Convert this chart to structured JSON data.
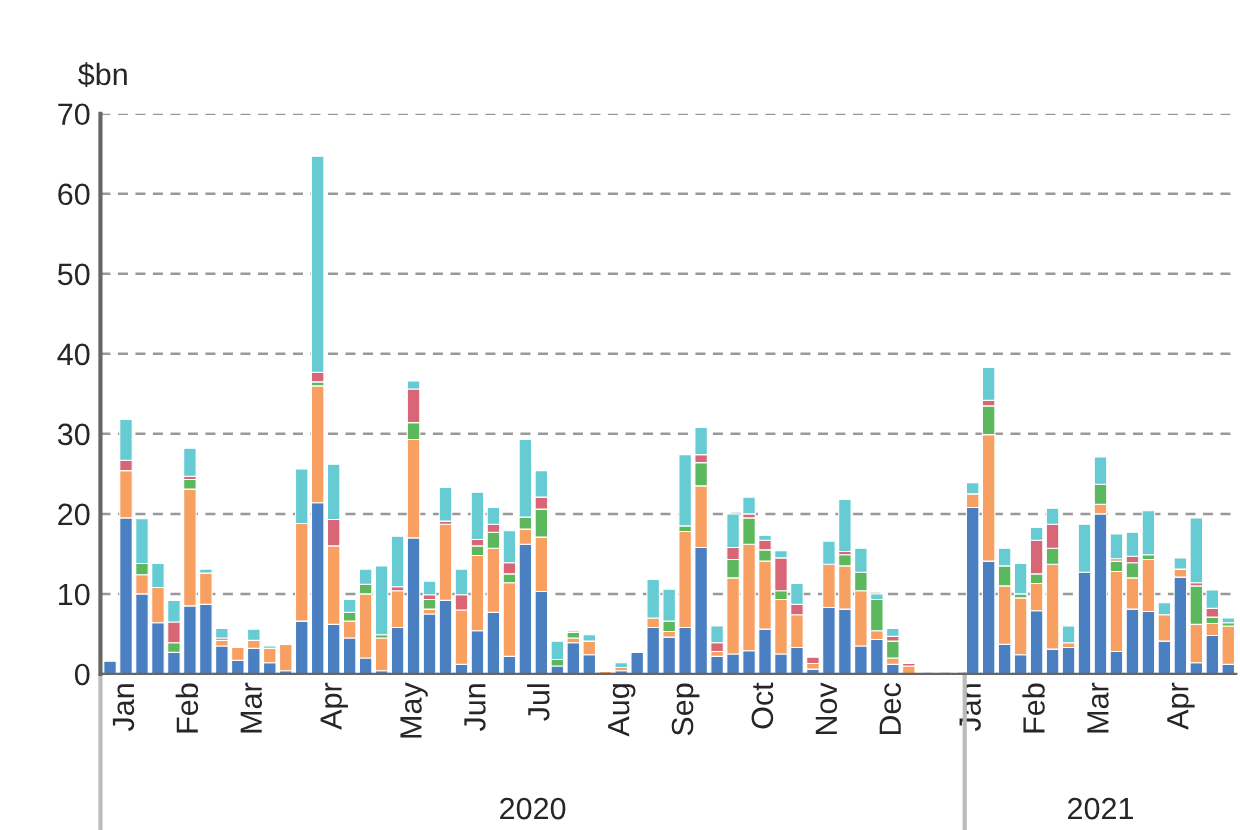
{
  "chart_data": {
    "type": "bar",
    "stacked": true,
    "ylabel": "$bn",
    "ylim": [
      0,
      70
    ],
    "yticks": [
      0,
      10,
      20,
      30,
      40,
      50,
      60,
      70
    ],
    "grid": "y",
    "legend": false,
    "categories": [
      null,
      "Jan",
      null,
      null,
      null,
      "Feb",
      null,
      null,
      null,
      "Mar",
      null,
      null,
      null,
      null,
      "Apr",
      null,
      null,
      null,
      null,
      "May",
      null,
      null,
      null,
      "Jun",
      null,
      null,
      null,
      "Jul",
      null,
      null,
      null,
      null,
      "Aug",
      null,
      null,
      null,
      "Sep",
      null,
      null,
      null,
      null,
      "Oct",
      null,
      null,
      null,
      "Nov",
      null,
      null,
      null,
      "Dec",
      null,
      null,
      null,
      null,
      "Jan",
      null,
      null,
      null,
      "Feb",
      null,
      null,
      null,
      "Mar",
      null,
      null,
      null,
      null,
      "Apr",
      null,
      null,
      null
    ],
    "series": [
      {
        "color": "#4a7fc1",
        "values": [
          1.6,
          19.5,
          10,
          6.4,
          2.7,
          8.5,
          8.7,
          3.5,
          1.7,
          3.2,
          1.4,
          0.4,
          6.6,
          21.4,
          6.2,
          4.5,
          2,
          0.4,
          5.8,
          17,
          7.5,
          9.2,
          1.2,
          5.4,
          7.7,
          2.2,
          16.2,
          10.3,
          1,
          3.9,
          2.4,
          null,
          0.4,
          2.7,
          5.8,
          4.6,
          5.8,
          15.8,
          2.2,
          2.5,
          2.9,
          5.6,
          2.5,
          3.3,
          0.6,
          8.3,
          8.1,
          3.5,
          4.3,
          1.2,
          null,
          null,
          null,
          null,
          20.8,
          14.1,
          3.7,
          2.4,
          7.9,
          3.1,
          3.3,
          12.7,
          20,
          2.8,
          8.1,
          7.8,
          4.1,
          12.1,
          1.4,
          4.8,
          1.2
        ]
      },
      {
        "color": "#f8a062",
        "values": [
          null,
          5.9,
          2.4,
          4.4,
          null,
          14.6,
          3.9,
          0.7,
          1.6,
          1,
          1.8,
          3.3,
          12.2,
          14.6,
          9.8,
          2.1,
          8,
          4.1,
          4.6,
          12.3,
          0.6,
          9.5,
          6.8,
          9.4,
          8,
          9.2,
          1.9,
          6.8,
          null,
          0.6,
          1.7,
          0.3,
          0.4,
          null,
          1.2,
          0.7,
          12,
          7.7,
          0.6,
          9.5,
          13.3,
          8.5,
          6.8,
          4.1,
          0.7,
          5.4,
          5.4,
          6.9,
          1.1,
          0.8,
          1,
          null,
          null,
          null,
          1.7,
          15.8,
          7.3,
          7.1,
          3.4,
          10.6,
          0.6,
          null,
          1.2,
          10,
          3.9,
          6.5,
          3.3,
          1,
          4.8,
          1.5,
          4.8
        ]
      },
      {
        "color": "#5cb85c",
        "values": [
          null,
          null,
          1.4,
          null,
          1.2,
          1.2,
          null,
          null,
          null,
          null,
          null,
          null,
          null,
          0.5,
          null,
          1.1,
          1.2,
          0.4,
          null,
          2.1,
          1.2,
          null,
          null,
          1.2,
          2,
          1.1,
          1.5,
          3.5,
          0.8,
          0.7,
          null,
          null,
          null,
          null,
          null,
          1.3,
          0.7,
          2.9,
          null,
          2.3,
          3.3,
          1.4,
          1.1,
          null,
          null,
          null,
          1.4,
          2.3,
          3.9,
          2.1,
          null,
          null,
          null,
          null,
          null,
          3.6,
          2.5,
          0.5,
          1.2,
          2,
          null,
          null,
          2.5,
          1.3,
          1.9,
          0.6,
          null,
          null,
          4.8,
          0.8,
          0.4
        ]
      },
      {
        "color": "#d96677",
        "values": [
          null,
          1.3,
          null,
          null,
          2.6,
          0.4,
          null,
          0.3,
          null,
          null,
          null,
          null,
          null,
          1.2,
          3.3,
          null,
          null,
          null,
          0.5,
          4.2,
          0.6,
          0.4,
          1.9,
          0.8,
          1,
          1.4,
          null,
          1.5,
          null,
          null,
          null,
          null,
          null,
          null,
          null,
          null,
          null,
          1,
          1.1,
          1.5,
          0.5,
          1.2,
          4.1,
          1.3,
          0.8,
          null,
          0.4,
          null,
          null,
          0.6,
          0.3,
          null,
          null,
          null,
          null,
          0.7,
          null,
          null,
          4.2,
          3,
          null,
          null,
          null,
          0.3,
          0.8,
          null,
          null,
          null,
          0.4,
          1.1,
          null
        ]
      },
      {
        "color": "#66cbd3",
        "values": [
          null,
          5.1,
          5.6,
          3,
          2.7,
          3.5,
          0.5,
          1.2,
          null,
          1.4,
          0.3,
          null,
          6.8,
          27,
          6.9,
          1.6,
          1.9,
          8.6,
          6.3,
          1,
          1.7,
          4.2,
          3.2,
          5.9,
          2.1,
          4,
          9.7,
          3.3,
          2.3,
          0.2,
          0.8,
          null,
          0.6,
          null,
          4.8,
          4,
          8.9,
          3.4,
          2.1,
          4.2,
          2.1,
          0.6,
          0.9,
          2.6,
          null,
          2.9,
          6.5,
          3,
          0.7,
          1,
          null,
          null,
          null,
          null,
          1.4,
          4.1,
          2.2,
          3.8,
          1.6,
          2,
          2.1,
          6,
          3.4,
          3.1,
          3,
          5.5,
          1.5,
          1.4,
          8.1,
          2.3,
          0.6
        ]
      }
    ],
    "annotations": [
      "2020",
      "2021"
    ]
  }
}
